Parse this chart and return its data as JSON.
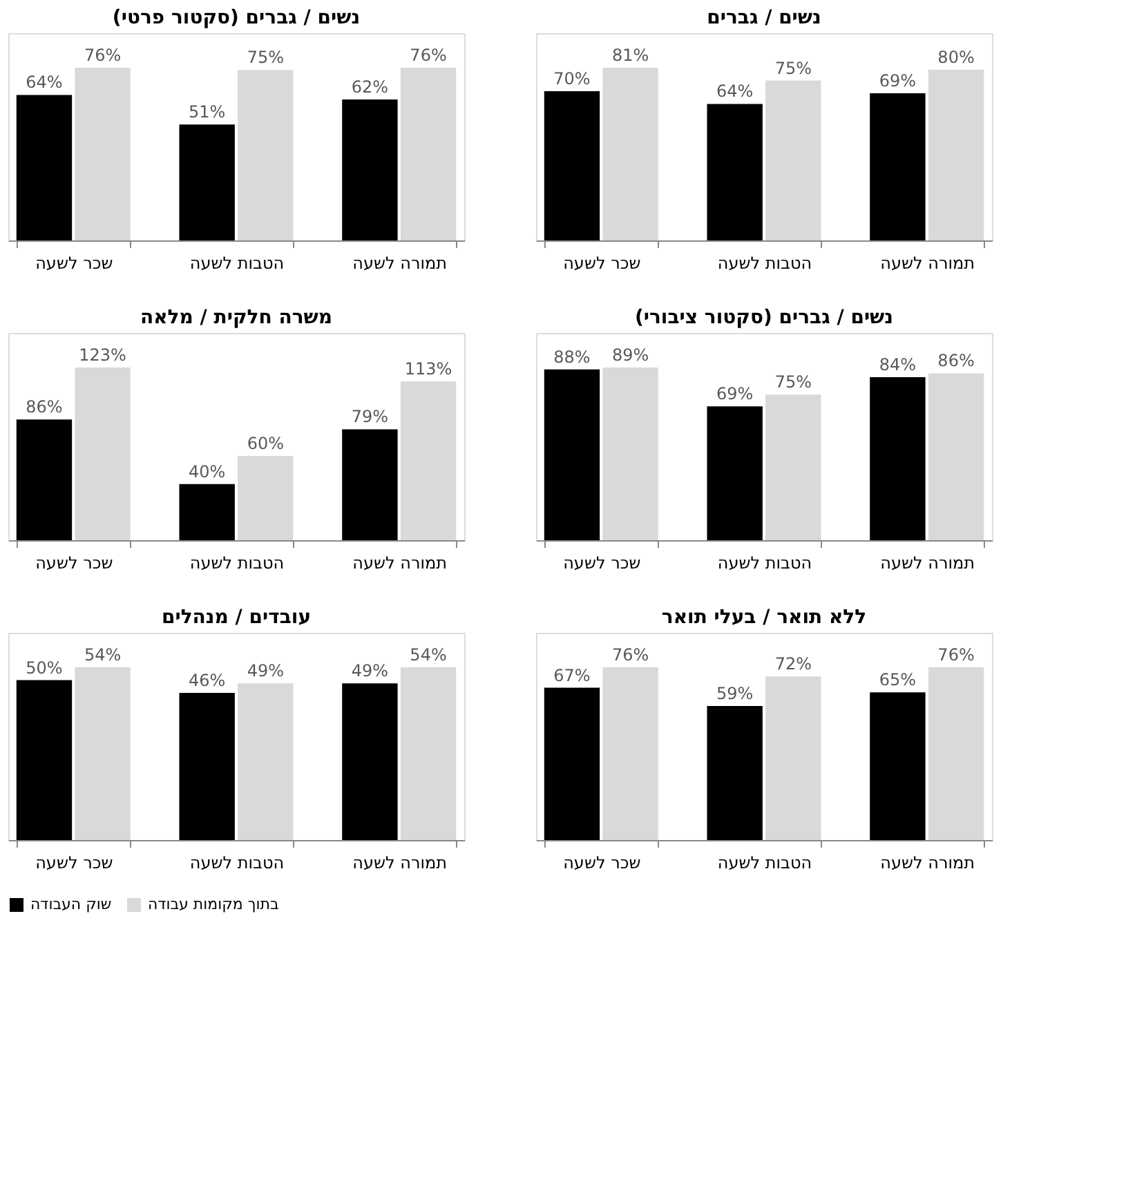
{
  "chart_data": [
    {
      "type": "bar",
      "title": "נשים / גברים",
      "categories": [
        "שכר לשעה",
        "הטבות לשעה",
        "תמורה לשעה"
      ],
      "legend": "bottom",
      "series": [
        {
          "name": "שוק העבודה",
          "color": "#000000",
          "values": [
            70,
            64,
            69
          ],
          "value_labels": [
            "70%",
            "64%",
            "69%"
          ]
        },
        {
          "name": "בתוך מקומות עבודה",
          "color": "#d9d9d9",
          "values": [
            81,
            75,
            80
          ],
          "value_labels": [
            "81%",
            "75%",
            "80%"
          ]
        }
      ]
    },
    {
      "type": "bar",
      "title": "נשים / גברים (סקטור פרטי)",
      "categories": [
        "שכר לשעה",
        "הטבות לשעה",
        "תמורה לשעה"
      ],
      "legend": "bottom",
      "series": [
        {
          "name": "שוק העבודה",
          "color": "#000000",
          "values": [
            64,
            51,
            62
          ],
          "value_labels": [
            "64%",
            "51%",
            "62%"
          ]
        },
        {
          "name": "בתוך מקומות עבודה",
          "color": "#d9d9d9",
          "values": [
            76,
            75,
            76
          ],
          "value_labels": [
            "76%",
            "75%",
            "76%"
          ]
        }
      ]
    },
    {
      "type": "bar",
      "title": "נשים / גברים (סקטור ציבורי)",
      "categories": [
        "שכר לשעה",
        "הטבות לשעה",
        "תמורה לשעה"
      ],
      "legend": "bottom",
      "series": [
        {
          "name": "שוק העבודה",
          "color": "#000000",
          "values": [
            88,
            69,
            84
          ],
          "value_labels": [
            "88%",
            "69%",
            "84%"
          ]
        },
        {
          "name": "בתוך מקומות עבודה",
          "color": "#d9d9d9",
          "values": [
            89,
            75,
            86
          ],
          "value_labels": [
            "89%",
            "75%",
            "86%"
          ]
        }
      ]
    },
    {
      "type": "bar",
      "title": "משרה חלקית / מלאה",
      "categories": [
        "שכר לשעה",
        "הטבות לשעה",
        "תמורה לשעה"
      ],
      "legend": "bottom",
      "series": [
        {
          "name": "שוק העבודה",
          "color": "#000000",
          "values": [
            86,
            40,
            79
          ],
          "value_labels": [
            "86%",
            "40%",
            "79%"
          ]
        },
        {
          "name": "בתוך מקומות עבודה",
          "color": "#d9d9d9",
          "values": [
            123,
            60,
            113
          ],
          "value_labels": [
            "123%",
            "60%",
            "113%"
          ]
        }
      ]
    },
    {
      "type": "bar",
      "title": "ללא תואר / בעלי תואר",
      "categories": [
        "שכר לשעה",
        "הטבות לשעה",
        "תמורה לשעה"
      ],
      "legend": "bottom",
      "series": [
        {
          "name": "שוק העבודה",
          "color": "#000000",
          "values": [
            67,
            59,
            65
          ],
          "value_labels": [
            "67%",
            "59%",
            "65%"
          ]
        },
        {
          "name": "בתוך מקומות עבודה",
          "color": "#d9d9d9",
          "values": [
            76,
            72,
            76
          ],
          "value_labels": [
            "76%",
            "72%",
            "76%"
          ]
        }
      ]
    },
    {
      "type": "bar",
      "title": "עובדים / מנהלים",
      "categories": [
        "שכר לשעה",
        "הטבות לשעה",
        "תמורה לשעה"
      ],
      "legend": "bottom",
      "series": [
        {
          "name": "שוק העבודה",
          "color": "#000000",
          "values": [
            50,
            46,
            49
          ],
          "value_labels": [
            "50%",
            "46%",
            "49%"
          ]
        },
        {
          "name": "בתוך מקומות עבודה",
          "color": "#d9d9d9",
          "values": [
            54,
            49,
            54
          ],
          "value_labels": [
            "54%",
            "49%",
            "54%"
          ]
        }
      ]
    }
  ]
}
